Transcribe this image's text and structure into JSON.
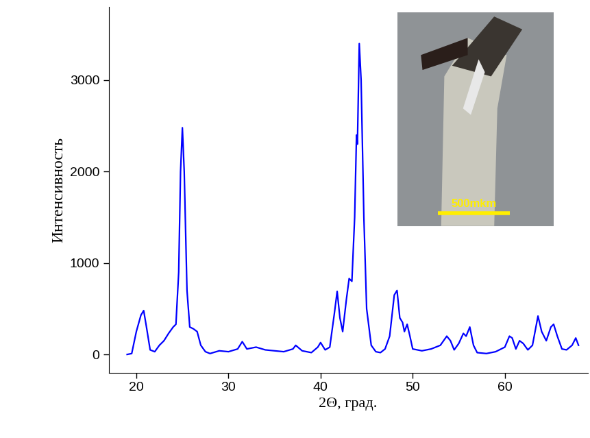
{
  "chart_data": {
    "type": "line",
    "x_label": "2Θ, град.",
    "y_label": "Интенсивность",
    "annotations": [
      "500mkm"
    ],
    "color": "#0000ff",
    "grid": false,
    "xlim": [
      17,
      69
    ],
    "xticks": [
      20,
      30,
      40,
      50,
      60
    ],
    "ylim": [
      -200,
      3800
    ],
    "yticks": [
      0,
      1000,
      2000,
      3000
    ],
    "x": [
      19,
      19.5,
      20,
      20.5,
      20.8,
      21.1,
      21.5,
      22,
      22.5,
      23,
      23.5,
      24,
      24.3,
      24.6,
      24.8,
      25.0,
      25.2,
      25.5,
      25.8,
      26.2,
      26.6,
      27,
      27.5,
      28,
      29,
      30,
      31,
      31.5,
      32,
      33,
      34,
      35,
      36,
      37,
      37.3,
      38,
      39,
      39.7,
      40,
      40.5,
      41,
      41.5,
      41.8,
      42.1,
      42.4,
      42.8,
      43.1,
      43.4,
      43.7,
      43.9,
      44.0,
      44.2,
      44.4,
      44.7,
      45,
      45.5,
      46,
      46.5,
      47,
      47.5,
      48,
      48.3,
      48.6,
      48.9,
      49.1,
      49.4,
      49.7,
      50,
      51,
      52,
      53,
      53.7,
      54.1,
      54.5,
      55,
      55.5,
      55.8,
      56.2,
      56.6,
      57,
      58,
      59,
      60,
      60.5,
      60.8,
      61.2,
      61.6,
      62,
      62.5,
      63,
      63.6,
      64,
      64.5,
      65,
      65.3,
      65.7,
      66.2,
      66.7,
      67.3,
      67.7,
      68
    ],
    "values": [
      0,
      10,
      250,
      430,
      480,
      300,
      50,
      30,
      100,
      150,
      230,
      300,
      330,
      900,
      2000,
      2480,
      2000,
      700,
      300,
      280,
      250,
      100,
      30,
      10,
      40,
      30,
      60,
      140,
      60,
      80,
      50,
      40,
      30,
      60,
      100,
      40,
      20,
      80,
      130,
      50,
      80,
      450,
      690,
      400,
      250,
      600,
      830,
      800,
      1500,
      2400,
      2300,
      3400,
      3000,
      1500,
      500,
      100,
      30,
      20,
      60,
      200,
      650,
      700,
      400,
      350,
      250,
      330,
      200,
      60,
      40,
      60,
      100,
      200,
      150,
      50,
      120,
      230,
      200,
      300,
      100,
      20,
      10,
      30,
      80,
      200,
      180,
      60,
      150,
      120,
      50,
      100,
      420,
      250,
      150,
      300,
      330,
      200,
      60,
      50,
      100,
      180,
      100
    ]
  }
}
